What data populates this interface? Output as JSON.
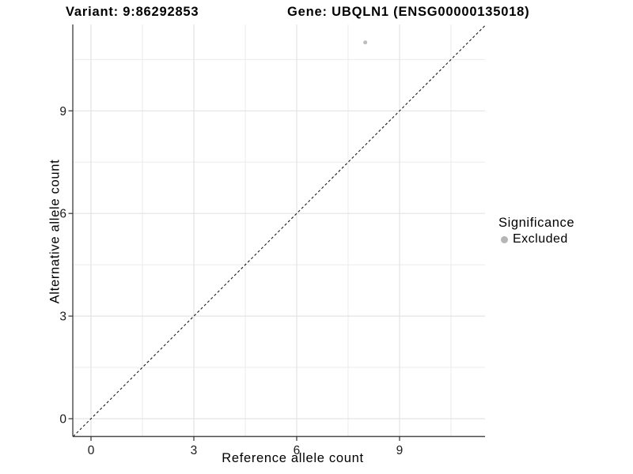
{
  "title": {
    "variant": "Variant: 9:86292853",
    "gene": "Gene: UBQLN1 (ENSG00000135018)"
  },
  "chart_data": {
    "type": "scatter",
    "xlabel": "Reference allele count",
    "ylabel": "Alternative allele count",
    "x_ticks": [
      0,
      3,
      6,
      9
    ],
    "y_ticks": [
      0,
      3,
      6,
      9
    ],
    "x_minor_gridlines": [
      1.5,
      4.5,
      7.5,
      10.5
    ],
    "y_minor_gridlines": [
      1.5,
      4.5,
      7.5,
      10.5
    ],
    "xlim": [
      -0.53,
      11.49
    ],
    "ylim": [
      -0.51,
      11.52
    ],
    "grid": true,
    "points": [
      {
        "x": 8,
        "y": 11,
        "significance": "Excluded"
      }
    ],
    "reference_line": {
      "slope": 1,
      "intercept": 0,
      "style": "dashed",
      "color": "#1a1a1a"
    },
    "legend": {
      "title": "Significance",
      "position": "right",
      "items": [
        {
          "label": "Excluded",
          "color": "#b5b5b5"
        }
      ]
    },
    "colors": {
      "point": "#bdbdbd",
      "grid_major": "#e3e3e3",
      "grid_minor": "#ebebeb",
      "axis_line": "#4a4a4a",
      "tick_mark": "#333333"
    }
  }
}
